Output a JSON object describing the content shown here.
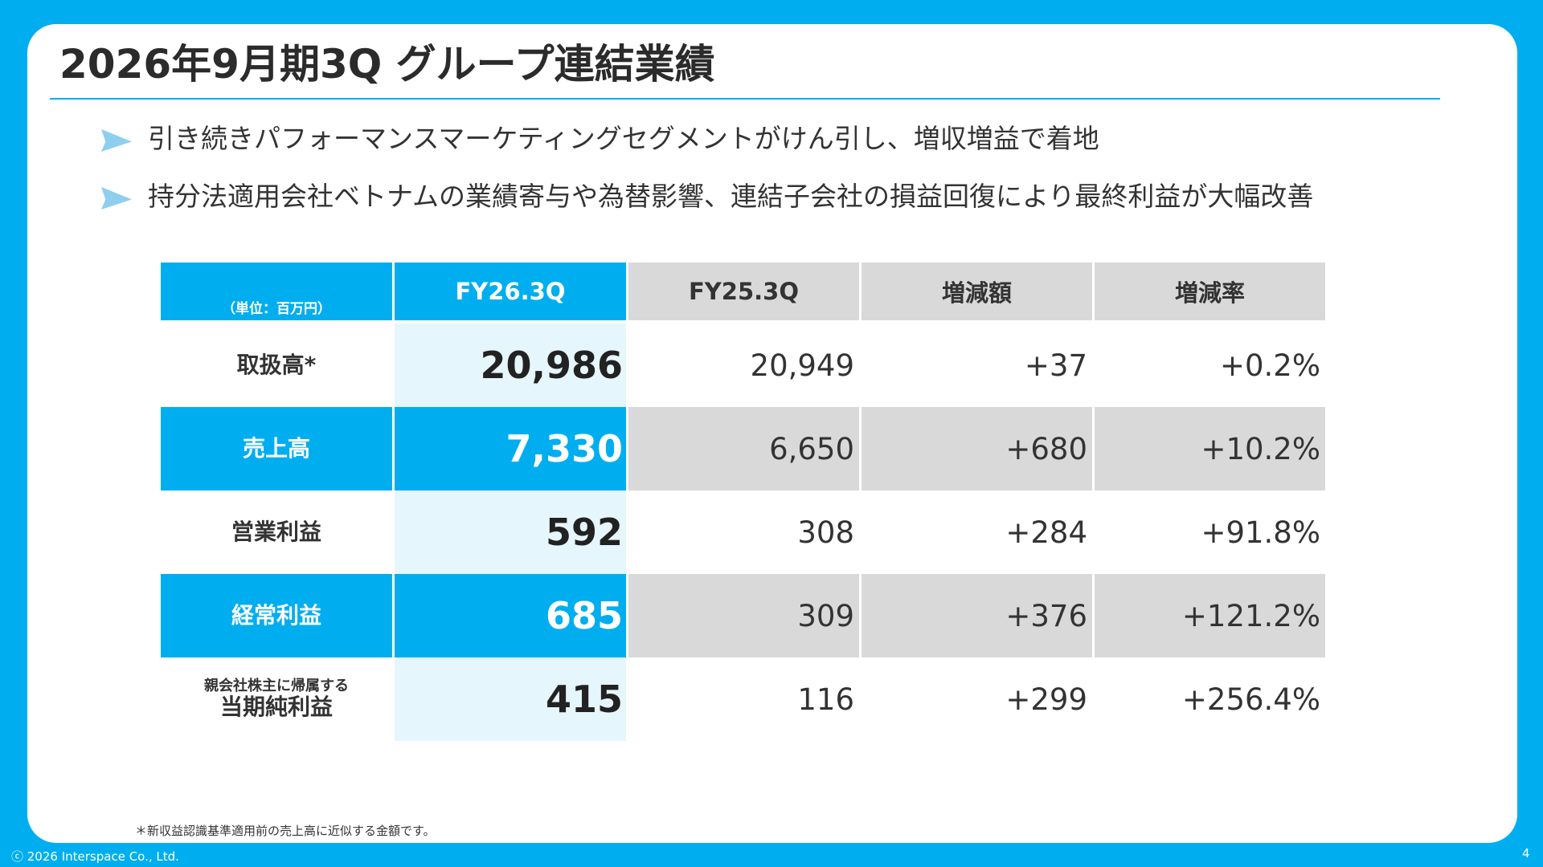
{
  "slide": {
    "title": "2026年9月期3Q グループ連結業績",
    "bullets": [
      "引き続きパフォーマンスマーケティングセグメントがけん引し、増収増益で着地",
      "持分法適用会社ベトナムの業績寄与や為替影響、連結子会社の損益回復により最終利益が大幅改善"
    ],
    "accent_color": "#00aeef"
  },
  "table": {
    "unit": "（単位：百万円）",
    "headers": [
      "FY26.3Q",
      "FY25.3Q",
      "増減額",
      "増減率"
    ],
    "rows": [
      {
        "label_small": "",
        "label": "取扱高*",
        "current": "20,986",
        "previous": "20,949",
        "diff": "+37",
        "rate": "+0.2%"
      },
      {
        "label_small": "",
        "label": "売上高",
        "current": "7,330",
        "previous": "6,650",
        "diff": "+680",
        "rate": "+10.2%"
      },
      {
        "label_small": "",
        "label": "営業利益",
        "current": "592",
        "previous": "308",
        "diff": "+284",
        "rate": "+91.8%"
      },
      {
        "label_small": "",
        "label": "経常利益",
        "current": "685",
        "previous": "309",
        "diff": "+376",
        "rate": "+121.2%"
      },
      {
        "label_small": "親会社株主に帰属する",
        "label": "当期純利益",
        "current": "415",
        "previous": "116",
        "diff": "+299",
        "rate": "+256.4%"
      }
    ]
  },
  "footer": {
    "footnote": "＊新収益認識基準適用前の売上高に近似する金額です。",
    "copyright": "ⓒ 2026 Interspace Co., Ltd.",
    "page_number": "4"
  }
}
